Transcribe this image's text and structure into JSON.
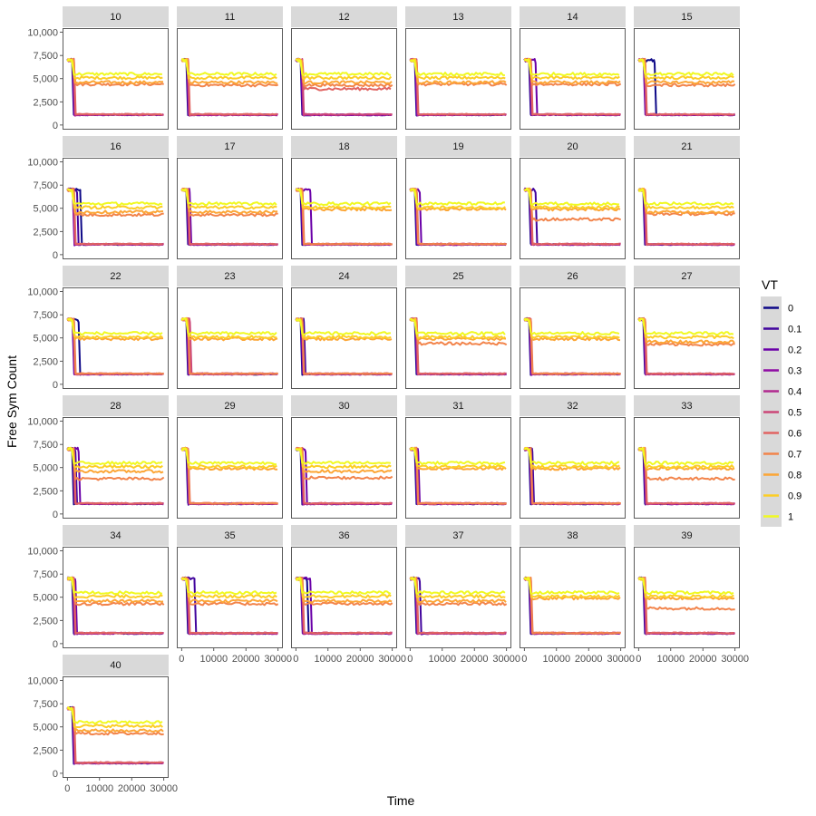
{
  "chart_data": {
    "type": "line",
    "xlabel": "Time",
    "ylabel": "Free Sym Count",
    "xlim": [
      0,
      30000
    ],
    "ylim": [
      0,
      10000
    ],
    "x_ticks": [
      "0",
      "10000",
      "20000",
      "30000"
    ],
    "x_tick_values": [
      0,
      10000,
      20000,
      30000
    ],
    "y_ticks": [
      "0",
      "2,500",
      "5,000",
      "7,500",
      "10,000"
    ],
    "y_tick_values": [
      0,
      2500,
      5000,
      7500,
      10000
    ],
    "grid": false,
    "legend": {
      "title": "VT",
      "position": "right",
      "entries": [
        "0",
        "0.1",
        "0.2",
        "0.3",
        "0.4",
        "0.5",
        "0.6",
        "0.7",
        "0.8",
        "0.9",
        "1"
      ],
      "colors": [
        "#0d0887",
        "#41049d",
        "#6a00a8",
        "#8f0da4",
        "#b12a90",
        "#cc4778",
        "#e16462",
        "#f2844b",
        "#fca636",
        "#fcce25",
        "#f0f921"
      ]
    },
    "series_initial_value": 7000,
    "panels": [
      {
        "label": "10",
        "drop_times": [
          1500,
          1600,
          1700,
          1800,
          1900,
          2000,
          2100,
          2000,
          1800,
          1600,
          1500
        ],
        "final_values": [
          1100,
          1100,
          1100,
          1100,
          1100,
          1150,
          1150,
          4400,
          4600,
          5100,
          5500
        ]
      },
      {
        "label": "11",
        "drop_times": [
          1500,
          1600,
          1700,
          1800,
          1900,
          2000,
          2100,
          2000,
          1800,
          1600,
          1500
        ],
        "final_values": [
          1100,
          1100,
          1100,
          1100,
          1100,
          1150,
          1150,
          4300,
          4600,
          5100,
          5500
        ]
      },
      {
        "label": "12",
        "drop_times": [
          1500,
          1600,
          1700,
          1800,
          1900,
          2000,
          2100,
          2000,
          1800,
          1600,
          1500
        ],
        "final_values": [
          1100,
          1100,
          1100,
          1100,
          1100,
          1150,
          3900,
          4300,
          4600,
          5100,
          5500
        ]
      },
      {
        "label": "13",
        "drop_times": [
          1500,
          1600,
          1700,
          1800,
          1900,
          2000,
          2100,
          2000,
          1800,
          1600,
          1500
        ],
        "final_values": [
          1100,
          1100,
          1100,
          1100,
          1100,
          1150,
          1150,
          4400,
          4600,
          5100,
          5500
        ]
      },
      {
        "label": "14",
        "drop_times": [
          1500,
          1600,
          3500,
          1800,
          1900,
          2000,
          2100,
          2000,
          1800,
          1600,
          1500
        ],
        "final_values": [
          1100,
          1100,
          1100,
          1100,
          1100,
          1150,
          1150,
          4400,
          4600,
          5100,
          5500
        ]
      },
      {
        "label": "15",
        "drop_times": [
          5000,
          1600,
          1700,
          1800,
          1900,
          2000,
          2100,
          2000,
          1800,
          1600,
          1500
        ],
        "final_values": [
          1100,
          1100,
          1100,
          1100,
          1100,
          1150,
          1150,
          4300,
          4600,
          5100,
          5500
        ]
      },
      {
        "label": "16",
        "drop_times": [
          4000,
          3000,
          1700,
          1800,
          1900,
          2000,
          2100,
          2000,
          1800,
          1600,
          1500
        ],
        "final_values": [
          1100,
          1100,
          1100,
          1100,
          1100,
          1150,
          1150,
          4300,
          4600,
          5100,
          5500
        ]
      },
      {
        "label": "17",
        "drop_times": [
          1500,
          1600,
          2500,
          1800,
          1900,
          2000,
          2100,
          2000,
          1800,
          1600,
          1500
        ],
        "final_values": [
          1100,
          1100,
          1100,
          1100,
          1100,
          1150,
          1150,
          4300,
          4600,
          5100,
          5500
        ]
      },
      {
        "label": "18",
        "drop_times": [
          1500,
          1600,
          4500,
          1800,
          1900,
          2000,
          2100,
          2000,
          1800,
          1600,
          1500
        ],
        "final_values": [
          1100,
          1100,
          1100,
          1100,
          1100,
          1150,
          1150,
          1150,
          4900,
          5100,
          5500
        ]
      },
      {
        "label": "19",
        "drop_times": [
          1500,
          1600,
          3000,
          1800,
          1900,
          2000,
          2100,
          2000,
          1800,
          1600,
          1500
        ],
        "final_values": [
          1100,
          1100,
          1100,
          1100,
          1100,
          1150,
          1150,
          1150,
          4900,
          5100,
          5500
        ]
      },
      {
        "label": "20",
        "drop_times": [
          1500,
          3500,
          1700,
          1800,
          1900,
          2000,
          2100,
          2000,
          1800,
          1600,
          1500
        ],
        "final_values": [
          1100,
          1100,
          1100,
          1100,
          1100,
          1150,
          1150,
          3800,
          4900,
          5100,
          5500
        ]
      },
      {
        "label": "21",
        "drop_times": [
          1500,
          1600,
          1700,
          1800,
          1900,
          2000,
          2100,
          2000,
          1800,
          1600,
          1500
        ],
        "final_values": [
          1100,
          1100,
          1100,
          1100,
          1100,
          1150,
          1150,
          4400,
          4600,
          5100,
          5500
        ]
      },
      {
        "label": "22",
        "drop_times": [
          3500,
          1600,
          1700,
          1800,
          1900,
          2000,
          2100,
          2000,
          1800,
          1600,
          1500
        ],
        "final_values": [
          1100,
          1100,
          1100,
          1100,
          1100,
          1150,
          1150,
          1150,
          4900,
          5100,
          5500
        ]
      },
      {
        "label": "23",
        "drop_times": [
          1500,
          1600,
          1700,
          1800,
          1900,
          2600,
          2100,
          2000,
          1800,
          1600,
          1500
        ],
        "final_values": [
          1100,
          1100,
          1100,
          1100,
          1100,
          1150,
          1150,
          1150,
          4900,
          5100,
          5500
        ]
      },
      {
        "label": "24",
        "drop_times": [
          1500,
          2500,
          1700,
          1800,
          1900,
          2000,
          2100,
          2000,
          1800,
          1600,
          1500
        ],
        "final_values": [
          1100,
          1100,
          1100,
          1100,
          1100,
          1150,
          1150,
          1150,
          4900,
          5100,
          5500
        ]
      },
      {
        "label": "25",
        "drop_times": [
          1500,
          2000,
          1700,
          1800,
          1900,
          2000,
          2100,
          2000,
          1800,
          1600,
          1500
        ],
        "final_values": [
          1100,
          1100,
          1100,
          1100,
          1100,
          1150,
          1150,
          4400,
          4900,
          5100,
          5500
        ]
      },
      {
        "label": "26",
        "drop_times": [
          1500,
          1600,
          1700,
          1800,
          1900,
          2000,
          2100,
          2000,
          1800,
          1600,
          1500
        ],
        "final_values": [
          1100,
          1100,
          1100,
          1100,
          1100,
          1150,
          1150,
          1150,
          4900,
          5100,
          5500
        ]
      },
      {
        "label": "27",
        "drop_times": [
          1500,
          1600,
          1700,
          1800,
          1900,
          2000,
          2100,
          2000,
          1800,
          1600,
          1500
        ],
        "final_values": [
          1100,
          1100,
          1100,
          1100,
          1100,
          1150,
          1150,
          4300,
          4600,
          5100,
          5500
        ]
      },
      {
        "label": "28",
        "drop_times": [
          1500,
          2500,
          3500,
          1800,
          1900,
          2000,
          2100,
          2000,
          1800,
          1600,
          1500
        ],
        "final_values": [
          1100,
          1100,
          1100,
          1100,
          1100,
          1150,
          1150,
          3800,
          4600,
          5100,
          5500
        ]
      },
      {
        "label": "29",
        "drop_times": [
          1500,
          1600,
          1700,
          1800,
          1900,
          2000,
          2100,
          2000,
          1800,
          1600,
          1500
        ],
        "final_values": [
          1100,
          1100,
          1100,
          1100,
          1100,
          1150,
          1150,
          1150,
          4900,
          5100,
          5500
        ]
      },
      {
        "label": "30",
        "drop_times": [
          1500,
          1600,
          3000,
          1800,
          1900,
          2000,
          2100,
          2000,
          1800,
          1600,
          1500
        ],
        "final_values": [
          1100,
          1100,
          1100,
          1100,
          1100,
          1150,
          1150,
          3900,
          4600,
          5100,
          5500
        ]
      },
      {
        "label": "31",
        "drop_times": [
          1500,
          1600,
          2500,
          1800,
          1900,
          2000,
          2100,
          2000,
          1800,
          1600,
          1500
        ],
        "final_values": [
          1100,
          1100,
          1100,
          1100,
          1100,
          1150,
          1150,
          1150,
          4900,
          5100,
          5500
        ]
      },
      {
        "label": "32",
        "drop_times": [
          1500,
          2500,
          1700,
          1800,
          1900,
          2000,
          2100,
          2000,
          1800,
          1600,
          1500
        ],
        "final_values": [
          1100,
          1100,
          1100,
          1100,
          1100,
          1150,
          1150,
          1150,
          4900,
          5100,
          5500
        ]
      },
      {
        "label": "33",
        "drop_times": [
          1500,
          1600,
          1700,
          1800,
          1900,
          2000,
          2100,
          2000,
          1800,
          1600,
          1500
        ],
        "final_values": [
          1100,
          1100,
          1100,
          1100,
          1100,
          1150,
          1150,
          3800,
          4900,
          5100,
          5500
        ]
      },
      {
        "label": "34",
        "drop_times": [
          1500,
          1600,
          2500,
          1800,
          1900,
          2000,
          2100,
          2000,
          1800,
          1600,
          1500
        ],
        "final_values": [
          1100,
          1100,
          1100,
          1100,
          1100,
          1150,
          1150,
          4300,
          4600,
          5100,
          5500
        ]
      },
      {
        "label": "35",
        "drop_times": [
          1500,
          4000,
          1700,
          1800,
          1900,
          2000,
          2100,
          2000,
          1800,
          1600,
          1500
        ],
        "final_values": [
          1100,
          1100,
          1100,
          1100,
          1100,
          1150,
          1150,
          4300,
          4600,
          5100,
          5500
        ]
      },
      {
        "label": "36",
        "drop_times": [
          3500,
          1600,
          4500,
          1800,
          1900,
          2000,
          2100,
          2000,
          1800,
          1600,
          1500
        ],
        "final_values": [
          1100,
          1100,
          1100,
          1100,
          1100,
          1150,
          1150,
          4300,
          4600,
          5100,
          5500
        ]
      },
      {
        "label": "37",
        "drop_times": [
          1500,
          3000,
          1700,
          1800,
          1900,
          2000,
          2100,
          2000,
          1800,
          1600,
          1500
        ],
        "final_values": [
          1100,
          1100,
          1100,
          1100,
          1100,
          1150,
          1150,
          4300,
          4600,
          5100,
          5500
        ]
      },
      {
        "label": "38",
        "drop_times": [
          1500,
          1600,
          1700,
          1800,
          1900,
          2000,
          2100,
          2000,
          1800,
          1600,
          1500
        ],
        "final_values": [
          1100,
          1100,
          1100,
          1100,
          1100,
          1150,
          1150,
          1150,
          4900,
          5100,
          5500
        ]
      },
      {
        "label": "39",
        "drop_times": [
          1500,
          1600,
          1700,
          1800,
          1900,
          2000,
          2100,
          2000,
          1800,
          1600,
          1500
        ],
        "final_values": [
          1100,
          1100,
          1100,
          1100,
          1100,
          1150,
          1150,
          3800,
          4900,
          5100,
          5500
        ]
      },
      {
        "label": "40",
        "drop_times": [
          1500,
          1600,
          1700,
          1800,
          1900,
          2000,
          2100,
          2000,
          1800,
          1600,
          1500
        ],
        "final_values": [
          1100,
          1100,
          1100,
          1100,
          1100,
          1150,
          1150,
          4300,
          4600,
          5100,
          5500
        ]
      }
    ]
  }
}
